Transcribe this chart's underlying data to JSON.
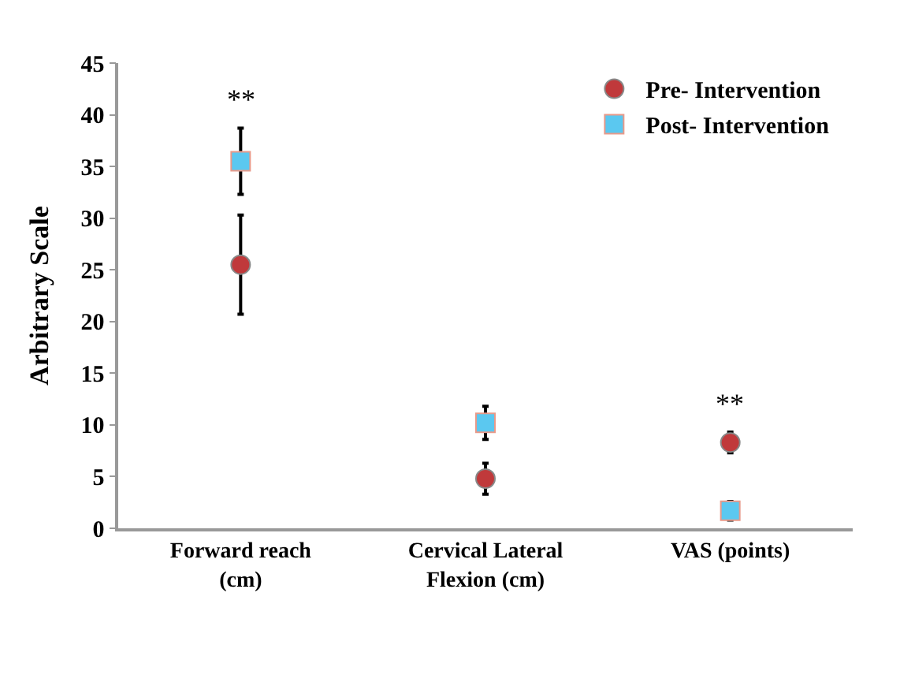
{
  "chart_data": {
    "type": "scatter",
    "ylabel": "Arbitrary Scale",
    "categories": [
      "Forward reach\n(cm)",
      "Cervical Lateral\nFlexion (cm)",
      "VAS (points)"
    ],
    "series": [
      {
        "name": "Pre- Intervention",
        "color": "#c0393b",
        "marker": "circle",
        "values": [
          25.5,
          4.8,
          8.3
        ],
        "errors": [
          4.8,
          1.5,
          1.0
        ]
      },
      {
        "name": "Post- Intervention",
        "color": "#5bc8f0",
        "marker": "square",
        "values": [
          35.5,
          10.2,
          1.7
        ],
        "errors": [
          3.2,
          1.6,
          0.9
        ]
      }
    ],
    "ylim": [
      0,
      45
    ],
    "yticks": [
      0,
      5,
      10,
      15,
      20,
      25,
      30,
      35,
      40,
      45
    ],
    "grid": false,
    "legend": "top right",
    "annotations": [
      {
        "text": "**",
        "x": "Forward reach\n(cm)",
        "y": 38.7
      },
      {
        "text": "**",
        "x": "VAS (points)",
        "y": 9.3
      }
    ]
  }
}
